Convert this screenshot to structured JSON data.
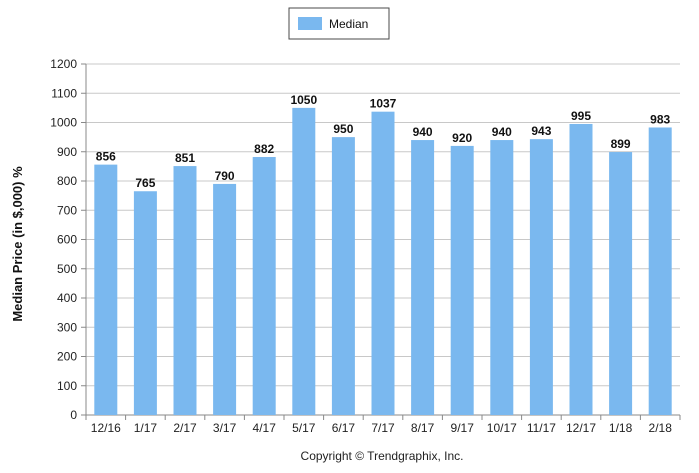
{
  "chart_data": {
    "type": "bar",
    "title": "",
    "xlabel": "",
    "ylabel": "Median Price (in $,000) %",
    "categories": [
      "12/16",
      "1/17",
      "2/17",
      "3/17",
      "4/17",
      "5/17",
      "6/17",
      "7/17",
      "8/17",
      "9/17",
      "10/17",
      "11/17",
      "12/17",
      "1/18",
      "2/18"
    ],
    "series": [
      {
        "name": "Median",
        "values": [
          856,
          765,
          851,
          790,
          882,
          1050,
          950,
          1037,
          940,
          920,
          940,
          943,
          995,
          899,
          983
        ]
      }
    ],
    "ylim": [
      0,
      1200
    ],
    "yticks": [
      0,
      100,
      200,
      300,
      400,
      500,
      600,
      700,
      800,
      900,
      1000,
      1100,
      1200
    ],
    "grid": true,
    "legend_position": "top-center",
    "bar_color": "#7ab8ef",
    "grid_color": "#c8c8c8"
  },
  "copyright": "Copyright © Trendgraphix, Inc."
}
